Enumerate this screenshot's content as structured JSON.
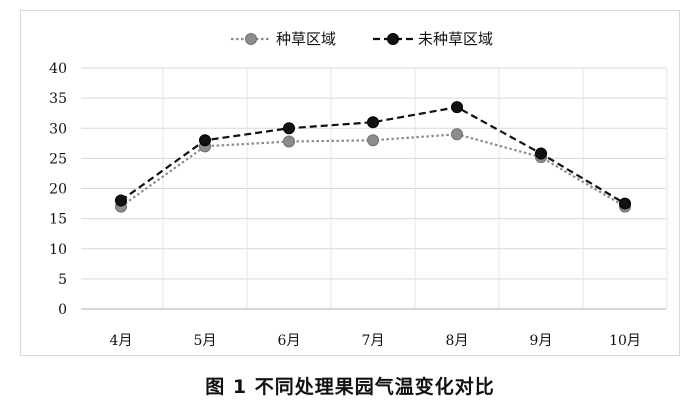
{
  "caption": "图 1   不同处理果园气温变化对比",
  "chart_data": {
    "type": "line",
    "categories": [
      "4月",
      "5月",
      "6月",
      "7月",
      "8月",
      "9月",
      "10月"
    ],
    "series": [
      {
        "name": "种草区域",
        "values": [
          17,
          27,
          27.8,
          28,
          29,
          25.2,
          17
        ],
        "color": "#8c8c8c",
        "dash": "dotted"
      },
      {
        "name": "未种草区域",
        "values": [
          18,
          28,
          30,
          31,
          33.5,
          25.8,
          17.5
        ],
        "color": "#111111",
        "dash": "dashed"
      }
    ],
    "yticks": [
      "0",
      "5",
      "10",
      "15",
      "20",
      "25",
      "30",
      "35",
      "40"
    ],
    "ylim": [
      0,
      40
    ],
    "grid": true,
    "legend_position": "top-center",
    "title": "",
    "xlabel": "",
    "ylabel": ""
  }
}
